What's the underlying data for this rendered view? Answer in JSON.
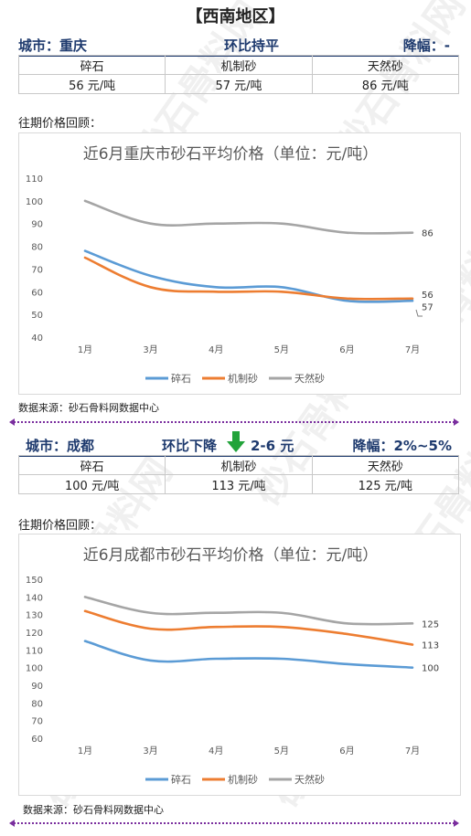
{
  "region_title": "【西南地区】",
  "sections": [
    {
      "city_label": "城市：重庆",
      "trend_label": "环比持平",
      "trend_delta": "",
      "drop_label": "降幅：-",
      "table_headers": [
        "碎石",
        "机制砂",
        "天然砂"
      ],
      "table_values": [
        "56 元/吨",
        "57 元/吨",
        "86 元/吨"
      ],
      "history_label": "往期价格回顾：",
      "source_label": "数据来源：砂石骨料网数据中心"
    },
    {
      "city_label": "城市：成都",
      "trend_label": "环比下降",
      "trend_delta": "2-6 元",
      "drop_label": "降幅：2%~5%",
      "table_headers": [
        "碎石",
        "机制砂",
        "天然砂"
      ],
      "table_values": [
        "100 元/吨",
        "113 元/吨",
        "125 元/吨"
      ],
      "history_label": "往期价格回顾：",
      "source_label": "数据来源：砂石骨料网数据中心"
    }
  ],
  "watermark": "砂石骨料网",
  "watermark_url": "www.cssglw.com",
  "colors": {
    "brand_navy": "#1e3a6e",
    "divider_purple": "#7a2e9e",
    "down_arrow": "#22a33a"
  },
  "chart_data": [
    {
      "type": "line",
      "title": "近6月重庆市砂石平均价格（单位：元/吨）",
      "categories": [
        "1月",
        "3月",
        "4月",
        "5月",
        "6月",
        "7月"
      ],
      "ylim": [
        40,
        110
      ],
      "yticks": [
        40,
        50,
        60,
        70,
        80,
        90,
        100,
        110
      ],
      "grid": false,
      "legend": "bottom",
      "series": [
        {
          "name": "碎石",
          "color": "#5b9bd5",
          "values": [
            78,
            67,
            62,
            62,
            56,
            56
          ]
        },
        {
          "name": "机制砂",
          "color": "#ed7d31",
          "values": [
            75,
            62,
            60,
            60,
            57,
            57
          ]
        },
        {
          "name": "天然砂",
          "color": "#a5a5a5",
          "values": [
            100,
            90,
            90,
            90,
            86,
            86
          ]
        }
      ],
      "end_labels": [
        "56",
        "57",
        "86"
      ]
    },
    {
      "type": "line",
      "title": "近6月成都市砂石平均价格（单位：元/吨）",
      "categories": [
        "1月",
        "3月",
        "4月",
        "5月",
        "6月",
        "7月"
      ],
      "ylim": [
        60,
        150
      ],
      "yticks": [
        60,
        70,
        80,
        90,
        100,
        110,
        120,
        130,
        140,
        150
      ],
      "grid": false,
      "legend": "bottom",
      "series": [
        {
          "name": "碎石",
          "color": "#5b9bd5",
          "values": [
            115,
            104,
            105,
            105,
            102,
            100
          ]
        },
        {
          "name": "机制砂",
          "color": "#ed7d31",
          "values": [
            132,
            122,
            123,
            123,
            119,
            113
          ]
        },
        {
          "name": "天然砂",
          "color": "#a5a5a5",
          "values": [
            140,
            131,
            131,
            131,
            125,
            125
          ]
        }
      ],
      "end_labels": [
        "100",
        "113",
        "125"
      ]
    }
  ]
}
